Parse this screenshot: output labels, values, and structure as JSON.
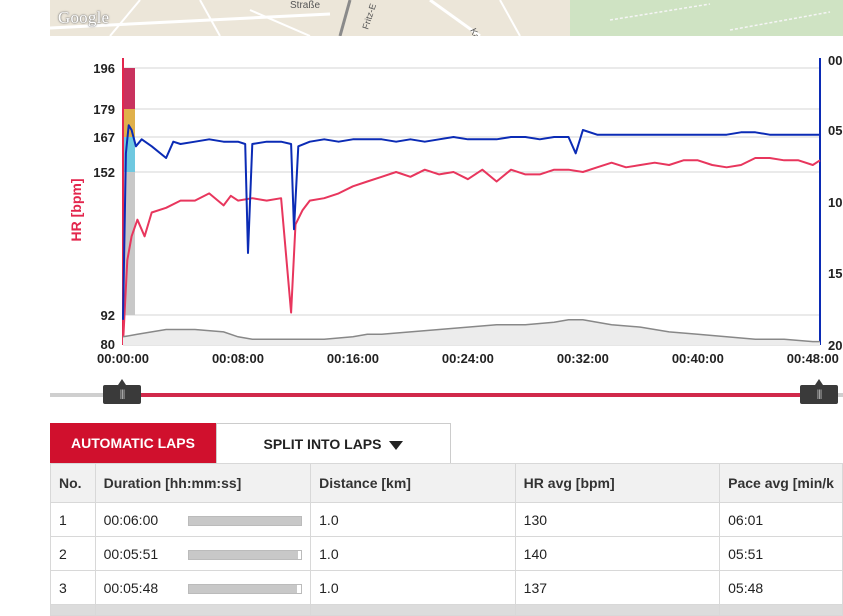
{
  "map": {
    "logo": "Google",
    "street_1": "Straße",
    "street_2": "Fritz-E",
    "street_3": "Karl-Ma"
  },
  "chart_data": {
    "type": "line",
    "ylabel": "HR [bpm]",
    "y_left_ticks": [
      196,
      179,
      167,
      152,
      92,
      80
    ],
    "y_right_ticks": [
      "00",
      "05",
      "10",
      "15",
      "20"
    ],
    "x_ticks": [
      "00:00:00",
      "00:08:00",
      "00:16:00",
      "00:24:00",
      "00:32:00",
      "00:40:00",
      "00:48:00"
    ],
    "x_range_min": [
      0,
      48.5
    ],
    "hr_zones": [
      {
        "from": 179,
        "to": 196,
        "color": "#c9325e"
      },
      {
        "from": 167,
        "to": 179,
        "color": "#e0b04a"
      },
      {
        "from": 152,
        "to": 167,
        "color": "#6fc8e0"
      },
      {
        "from": 92,
        "to": 152,
        "color": "#c8c8c8"
      }
    ],
    "series": [
      {
        "color": "#e8365d",
        "x": [
          0,
          0.3,
          0.6,
          1,
          1.5,
          2,
          3,
          4,
          5,
          6,
          7,
          7.5,
          8,
          9,
          10,
          11,
          11.7,
          12,
          12.5,
          13,
          14,
          15,
          16,
          17,
          18,
          19,
          20,
          21,
          22,
          23,
          24,
          25,
          26,
          27,
          28,
          29,
          30,
          31,
          32,
          33,
          34,
          35,
          36,
          37,
          38,
          39,
          40,
          41,
          42,
          43,
          44,
          45,
          46,
          47,
          48,
          48.5
        ],
        "values": [
          80,
          115,
          125,
          132,
          125,
          135,
          137,
          140,
          140,
          143,
          138,
          142,
          140,
          141,
          140,
          141,
          93,
          130,
          136,
          140,
          141,
          143,
          146,
          148,
          150,
          152,
          150,
          153,
          151,
          152,
          149,
          153,
          148,
          153,
          151,
          151,
          153,
          153,
          152,
          154,
          156,
          154,
          155,
          156,
          155,
          157,
          157,
          155,
          154,
          155,
          158,
          158,
          157,
          157,
          155,
          157
        ]
      },
      {
        "color": "#0b2bb5",
        "x": [
          0,
          0.2,
          0.4,
          0.6,
          0.9,
          1.3,
          2,
          3,
          3.5,
          4,
          5,
          6,
          7,
          8,
          8.5,
          8.7,
          9,
          10,
          11,
          11.7,
          11.9,
          12.2,
          13,
          14,
          15,
          16,
          17,
          18,
          19,
          20,
          21,
          22,
          23,
          24,
          25,
          26,
          27,
          28,
          29,
          30,
          31,
          31.5,
          32,
          33,
          34,
          35,
          36,
          37,
          38,
          39,
          40,
          41,
          42,
          43,
          44,
          45,
          46,
          47,
          48,
          48.5
        ],
        "values": [
          90,
          160,
          172,
          170,
          163,
          166,
          163,
          158,
          165,
          164,
          165,
          166,
          165,
          165,
          164,
          118,
          164,
          165,
          165,
          164,
          128,
          163,
          165,
          166,
          165,
          166,
          166,
          166,
          165,
          166,
          165,
          166,
          167,
          166,
          166,
          166,
          167,
          167,
          166,
          167,
          167,
          160,
          170,
          168,
          168,
          168,
          168,
          168,
          168,
          168,
          168,
          168,
          168,
          169,
          169,
          168,
          168,
          168,
          168,
          168
        ]
      },
      {
        "color": "#888888",
        "x": [
          0,
          1,
          2,
          3,
          5,
          7,
          8,
          9,
          10,
          11,
          12,
          14,
          16,
          17,
          18,
          20,
          22,
          24,
          26,
          28,
          30,
          31,
          32,
          33,
          34,
          36,
          38,
          40,
          42,
          44,
          46,
          48,
          48.5
        ],
        "values": [
          83,
          84,
          85,
          86,
          86,
          85,
          83,
          82,
          82,
          82,
          82,
          82,
          83,
          84,
          84,
          85,
          86,
          87,
          88,
          88,
          89,
          90,
          90,
          89,
          88,
          87,
          85,
          84,
          83,
          82,
          82,
          81,
          81
        ]
      }
    ]
  },
  "slider": {
    "grip": "|||"
  },
  "tabs": {
    "auto": "AUTOMATIC LAPS",
    "split": "SPLIT INTO LAPS"
  },
  "table": {
    "headers": [
      "No.",
      "Duration [hh:mm:ss]",
      "Distance [km]",
      "HR avg [bpm]",
      "Pace avg [min/k"
    ],
    "rows": [
      {
        "no": "1",
        "duration": "00:06:00",
        "bar": 1.0,
        "distance": "1.0",
        "hr": "130",
        "pace": "06:01"
      },
      {
        "no": "2",
        "duration": "00:05:51",
        "bar": 0.97,
        "distance": "1.0",
        "hr": "140",
        "pace": "05:51"
      },
      {
        "no": "3",
        "duration": "00:05:48",
        "bar": 0.96,
        "distance": "1.0",
        "hr": "137",
        "pace": "05:48"
      }
    ]
  }
}
